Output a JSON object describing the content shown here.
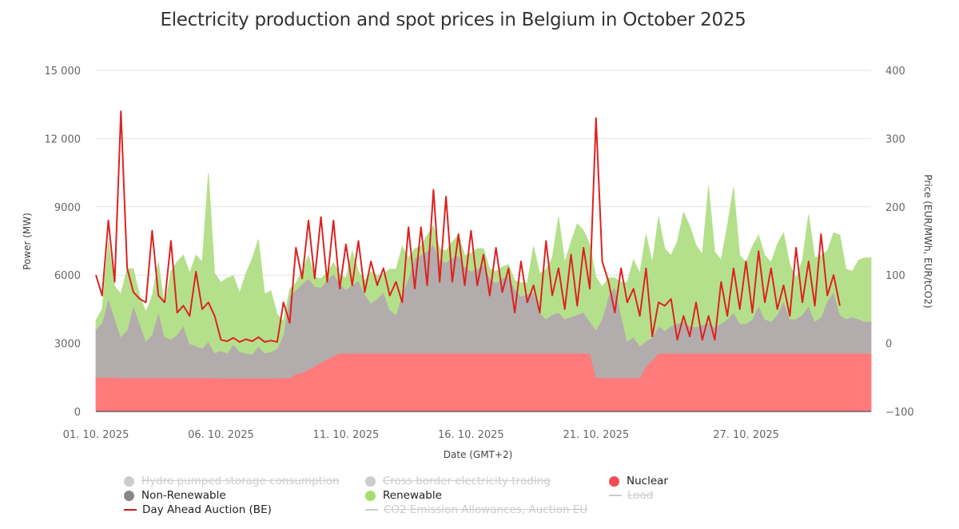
{
  "title": "Electricity production and spot prices in Belgium in October 2025",
  "chart_data": {
    "type": "area",
    "title": "Electricity production and spot prices in Belgium in October 2025",
    "xlabel": "Date (GMT+2)",
    "ylabel_left": "Power (MW)",
    "ylabel_right": "Price (EUR/MWh, EUR/tCO2)",
    "x_range_days": [
      0,
      31
    ],
    "x_start_date": "01.10.2025",
    "x_ticks": [
      {
        "day": 0,
        "label": "01. 10. 2025"
      },
      {
        "day": 5,
        "label": "06. 10. 2025"
      },
      {
        "day": 10,
        "label": "11. 10. 2025"
      },
      {
        "day": 15,
        "label": "16. 10. 2025"
      },
      {
        "day": 20,
        "label": "21. 10. 2025"
      },
      {
        "day": 26,
        "label": "27. 10. 2025"
      }
    ],
    "y_left": {
      "min": 0,
      "max": 15000,
      "ticks": [
        {
          "v": 0,
          "label": "0"
        },
        {
          "v": 3000,
          "label": "3000"
        },
        {
          "v": 6000,
          "label": "6000"
        },
        {
          "v": 9000,
          "label": "9000"
        },
        {
          "v": 12000,
          "label": "12 000"
        },
        {
          "v": 15000,
          "label": "15 000"
        }
      ]
    },
    "y_right": {
      "min": -100,
      "max": 400,
      "ticks": [
        {
          "v": -100,
          "label": "−100"
        },
        {
          "v": 0,
          "label": "0"
        },
        {
          "v": 100,
          "label": "100"
        },
        {
          "v": 200,
          "label": "200"
        },
        {
          "v": 300,
          "label": "300"
        },
        {
          "v": 400,
          "label": "400"
        }
      ]
    },
    "grid": true,
    "sample_interval_hours": 6,
    "series": [
      {
        "name": "Nuclear",
        "kind": "area",
        "axis": "left",
        "stack": true,
        "color": "#ff7b7b",
        "values": [
          1500,
          1500,
          1500,
          1500,
          1480,
          1480,
          1480,
          1480,
          1480,
          1480,
          1480,
          1480,
          1480,
          1480,
          1480,
          1480,
          1480,
          1480,
          1480,
          1480,
          1470,
          1470,
          1470,
          1470,
          1470,
          1470,
          1470,
          1470,
          1470,
          1470,
          1480,
          1480,
          1650,
          1700,
          1850,
          2000,
          2150,
          2300,
          2450,
          2550,
          2560,
          2560,
          2560,
          2560,
          2560,
          2560,
          2560,
          2560,
          2560,
          2560,
          2560,
          2560,
          2560,
          2560,
          2560,
          2560,
          2560,
          2560,
          2560,
          2560,
          2560,
          2560,
          2560,
          2560,
          2560,
          2560,
          2560,
          2560,
          2560,
          2560,
          2560,
          2560,
          2560,
          2560,
          2560,
          2560,
          2560,
          2560,
          2560,
          2560,
          1500,
          1480,
          1480,
          1480,
          1480,
          1480,
          1480,
          1480,
          2000,
          2250,
          2560,
          2560,
          2560,
          2560,
          2560,
          2560,
          2560,
          2560,
          2560,
          2560,
          2560,
          2560,
          2560,
          2560,
          2560,
          2560,
          2560,
          2560,
          2560,
          2560,
          2560,
          2560,
          2560,
          2560,
          2560,
          2560,
          2560,
          2560,
          2560,
          2560,
          2560,
          2560,
          2560,
          2560
        ]
      },
      {
        "name": "Non-Renewable",
        "kind": "area",
        "axis": "left",
        "stack": true,
        "color": "#b3acac",
        "values": [
          2100,
          2400,
          3500,
          2600,
          1800,
          2100,
          3200,
          2400,
          1600,
          1900,
          2900,
          1800,
          1700,
          1900,
          2300,
          1500,
          1400,
          1300,
          1600,
          1100,
          1200,
          1100,
          1500,
          1150,
          1100,
          1050,
          1400,
          1100,
          1150,
          1300,
          1900,
          3600,
          3700,
          3900,
          4000,
          3500,
          3300,
          3500,
          3600,
          3100,
          2800,
          3000,
          3200,
          2600,
          2200,
          2400,
          2700,
          1900,
          1700,
          2600,
          3300,
          4200,
          4300,
          4500,
          4800,
          4100,
          4000,
          4200,
          4300,
          3800,
          3600,
          3700,
          3900,
          3300,
          3100,
          3300,
          3400,
          2800,
          2500,
          2600,
          2700,
          1800,
          1500,
          1700,
          1800,
          1500,
          1600,
          1700,
          1800,
          1400,
          2100,
          2600,
          3600,
          4000,
          2800,
          1600,
          1800,
          1400,
          1100,
          1000,
          1200,
          1000,
          1200,
          1300,
          1400,
          1200,
          1150,
          1250,
          1350,
          1150,
          1300,
          1500,
          1800,
          1300,
          1300,
          1500,
          2100,
          1500,
          1400,
          1700,
          2300,
          1500,
          1500,
          1700,
          2100,
          1400,
          1600,
          2300,
          2700,
          1700,
          1500,
          1600,
          1500,
          1400
        ]
      },
      {
        "name": "Renewable",
        "kind": "area",
        "axis": "left",
        "stack": true,
        "color": "#b5e08b",
        "values": [
          400,
          600,
          2500,
          1400,
          1900,
          2700,
          1600,
          1200,
          1300,
          1700,
          2200,
          1300,
          3000,
          3200,
          3100,
          3100,
          4000,
          3800,
          7400,
          3500,
          3000,
          3300,
          3000,
          2600,
          3500,
          4200,
          4700,
          2600,
          2700,
          1500,
          600,
          300,
          300,
          600,
          1000,
          400,
          400,
          300,
          500,
          400,
          500,
          1500,
          400,
          600,
          1400,
          1000,
          800,
          1800,
          2000,
          2100,
          900,
          400,
          400,
          700,
          800,
          500,
          500,
          700,
          900,
          500,
          800,
          900,
          700,
          400,
          500,
          500,
          500,
          400,
          600,
          500,
          2000,
          1700,
          2200,
          2500,
          4200,
          2500,
          3300,
          4000,
          3600,
          3400,
          2300,
          1400,
          800,
          400,
          1400,
          2600,
          3400,
          3200,
          4700,
          3300,
          4800,
          3600,
          3100,
          3600,
          4800,
          4400,
          3600,
          3100,
          6000,
          3300,
          2800,
          4100,
          5500,
          3000,
          2700,
          3200,
          3100,
          2800,
          2600,
          3100,
          3000,
          2400,
          1800,
          2400,
          4000,
          2800,
          2700,
          2200,
          2600,
          3500,
          2200,
          2000,
          2600,
          2800
        ]
      },
      {
        "name": "Day Ahead Auction (BE)",
        "kind": "line",
        "axis": "right",
        "color": "#dd2222",
        "values": [
          100,
          70,
          180,
          90,
          340,
          110,
          75,
          65,
          60,
          165,
          70,
          60,
          150,
          45,
          55,
          40,
          105,
          50,
          60,
          40,
          5,
          3,
          8,
          2,
          6,
          3,
          9,
          2,
          4,
          2,
          60,
          30,
          140,
          95,
          180,
          95,
          185,
          90,
          180,
          80,
          145,
          85,
          150,
          75,
          120,
          85,
          110,
          70,
          90,
          60,
          170,
          80,
          170,
          85,
          225,
          90,
          215,
          90,
          160,
          85,
          165,
          85,
          130,
          70,
          140,
          75,
          110,
          45,
          120,
          60,
          85,
          45,
          150,
          70,
          110,
          50,
          130,
          55,
          140,
          80,
          330,
          120,
          90,
          45,
          110,
          60,
          80,
          40,
          110,
          10,
          60,
          55,
          65,
          5,
          40,
          10,
          60,
          5,
          40,
          5,
          90,
          40,
          110,
          50,
          120,
          45,
          135,
          60,
          110,
          50,
          85,
          40,
          140,
          60,
          120,
          55,
          160,
          70,
          100,
          55
        ]
      },
      {
        "name": "Hydro pumped storage consumption",
        "kind": "area",
        "visible": false,
        "color": "#cccccc",
        "values": []
      },
      {
        "name": "Cross border electricity trading",
        "kind": "area",
        "visible": false,
        "color": "#cccccc",
        "values": []
      },
      {
        "name": "Load",
        "kind": "line",
        "visible": false,
        "color": "#cccccc",
        "values": []
      },
      {
        "name": "CO2 Emission Allowances, Auction EU",
        "kind": "line",
        "visible": false,
        "color": "#cccccc",
        "values": []
      }
    ],
    "legend": {
      "position": "bottom",
      "items": [
        {
          "label": "Hydro pumped storage consumption",
          "symbol": "dot",
          "color": "#cccccc",
          "visible": false
        },
        {
          "label": "Cross border electricity trading",
          "symbol": "dot",
          "color": "#cccccc",
          "visible": false
        },
        {
          "label": "Nuclear",
          "symbol": "dot",
          "color": "#f24c54",
          "visible": true
        },
        {
          "label": "Non-Renewable",
          "symbol": "dot",
          "color": "#8c8585",
          "visible": true
        },
        {
          "label": "Renewable",
          "symbol": "dot",
          "color": "#a8dc6c",
          "visible": true
        },
        {
          "label": "Load",
          "symbol": "line",
          "color": "#cccccc",
          "visible": false
        },
        {
          "label": "Day Ahead Auction (BE)",
          "symbol": "line",
          "color": "#cc1a1a",
          "visible": true
        },
        {
          "label": "CO2 Emission Allowances, Auction EU",
          "symbol": "line",
          "color": "#cccccc",
          "visible": false
        }
      ]
    }
  }
}
